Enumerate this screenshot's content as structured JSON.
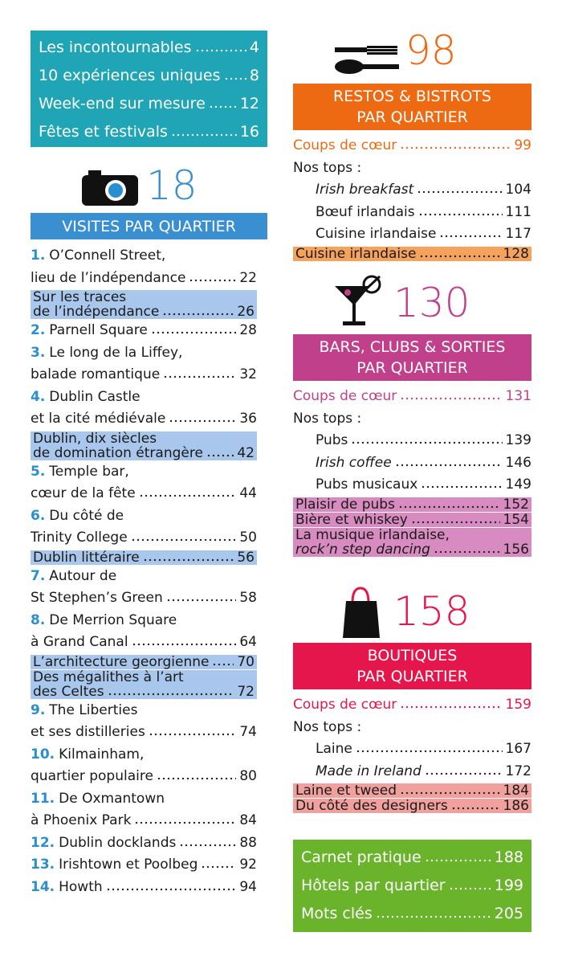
{
  "summary": {
    "color": "#1fa5b6",
    "items": [
      {
        "label": "Les incontournables",
        "page": "4"
      },
      {
        "label": "10 expériences uniques",
        "page": "8"
      },
      {
        "label": "Week-end sur mesure",
        "page": "12"
      },
      {
        "label": "Fêtes et festivals",
        "page": "16"
      }
    ]
  },
  "visites": {
    "number": "18",
    "title": "VISITES PAR QUARTIER",
    "color": "#3a8fd0",
    "highlight_color": "#a9c7ec",
    "entries": [
      {
        "num": "1.",
        "lines": [
          "O’Connell Street,",
          "lieu de l’indépendance"
        ],
        "page": "22"
      },
      {
        "lines": [
          "Sur les traces",
          "de l’indépendance"
        ],
        "page": "26",
        "highlight": true
      },
      {
        "num": "2.",
        "lines": [
          "Parnell Square"
        ],
        "page": "28"
      },
      {
        "num": "3.",
        "lines": [
          "Le long de la Liffey,",
          "balade romantique"
        ],
        "page": "32"
      },
      {
        "num": "4.",
        "lines": [
          "Dublin Castle",
          "et la cité médiévale"
        ],
        "page": "36"
      },
      {
        "lines": [
          "Dublin, dix siècles",
          "de domination étrangère"
        ],
        "page": "42",
        "highlight": true
      },
      {
        "num": "5.",
        "lines": [
          "Temple bar,",
          "cœur de la fête"
        ],
        "page": "44"
      },
      {
        "num": "6.",
        "lines": [
          "Du côté de",
          "Trinity College"
        ],
        "page": "50"
      },
      {
        "lines": [
          "Dublin littéraire"
        ],
        "page": "56",
        "highlight": true
      },
      {
        "num": "7.",
        "lines": [
          "Autour de",
          "St Stephen’s Green"
        ],
        "page": "58"
      },
      {
        "num": "8.",
        "lines": [
          "De Merrion Square",
          "à Grand Canal"
        ],
        "page": "64"
      },
      {
        "lines": [
          "L’architecture georgienne"
        ],
        "page": "70",
        "highlight": true
      },
      {
        "lines": [
          "Des mégalithes à l’art",
          "des Celtes"
        ],
        "page": "72",
        "highlight": true
      },
      {
        "num": "9.",
        "lines": [
          "The Liberties",
          "et ses distilleries"
        ],
        "page": "74"
      },
      {
        "num": "10.",
        "lines": [
          "Kilmainham,",
          "quartier populaire"
        ],
        "page": "80"
      },
      {
        "num": "11.",
        "lines": [
          "De Oxmantown",
          "à Phoenix Park"
        ],
        "page": "84"
      },
      {
        "num": "12.",
        "lines": [
          "Dublin docklands"
        ],
        "page": "88"
      },
      {
        "num": "13.",
        "lines": [
          "Irishtown et Poolbeg"
        ],
        "page": "92"
      },
      {
        "num": "14.",
        "lines": [
          "Howth"
        ],
        "page": "94"
      }
    ]
  },
  "sections": [
    {
      "number": "98",
      "title_lines": [
        "RESTOS & BISTROTS",
        "PAR QUARTIER"
      ],
      "color": "#ee6a12",
      "highlight_color": "#f5a25c",
      "favorite": {
        "label": "Coups de cœur",
        "page": "99"
      },
      "tops_label": "Nos tops :",
      "tops": [
        {
          "label": "Irish breakfast",
          "page": "104",
          "italic": true
        },
        {
          "label": "Bœuf irlandais",
          "page": "111"
        },
        {
          "label": "Cuisine irlandaise",
          "page": "117"
        }
      ],
      "highlights": [
        {
          "lines": [
            "Cuisine irlandaise"
          ],
          "page": "128"
        }
      ]
    },
    {
      "number": "130",
      "title_lines": [
        "BARS, CLUBS & SORTIES",
        "PAR QUARTIER"
      ],
      "color": "#c1408c",
      "highlight_color": "#d88bc0",
      "favorite": {
        "label": "Coups de cœur",
        "page": "131"
      },
      "tops_label": "Nos tops :",
      "tops": [
        {
          "label": "Pubs",
          "page": "139"
        },
        {
          "label": "Irish coffee",
          "page": "146",
          "italic": true
        },
        {
          "label": "Pubs musicaux",
          "page": "149"
        }
      ],
      "highlights": [
        {
          "lines": [
            "Plaisir de pubs"
          ],
          "page": "152"
        },
        {
          "lines": [
            "Bière et whiskey"
          ],
          "page": "154"
        },
        {
          "lines": [
            "La musique irlandaise,",
            "rock’n step dancing"
          ],
          "page": "156",
          "italic_lines": [
            1
          ]
        }
      ]
    },
    {
      "number": "158",
      "title_lines": [
        "BOUTIQUES",
        "PAR QUARTIER"
      ],
      "color": "#e5164c",
      "highlight_color": "#f0a19e",
      "favorite": {
        "label": "Coups de cœur",
        "page": "159"
      },
      "tops_label": "Nos tops :",
      "tops": [
        {
          "label": "Laine",
          "page": "167"
        },
        {
          "label": "Made in Ireland",
          "page": "172",
          "italic": true
        }
      ],
      "highlights": [
        {
          "lines": [
            "Laine et tweed"
          ],
          "page": "184"
        },
        {
          "lines": [
            "Du côté des designers"
          ],
          "page": "186"
        }
      ]
    }
  ],
  "practical": {
    "color": "#6ab42b",
    "items": [
      {
        "label": "Carnet pratique",
        "page": "188"
      },
      {
        "label": "Hôtels par quartier",
        "page": "199"
      },
      {
        "label": "Mots clés",
        "page": "205"
      }
    ]
  }
}
